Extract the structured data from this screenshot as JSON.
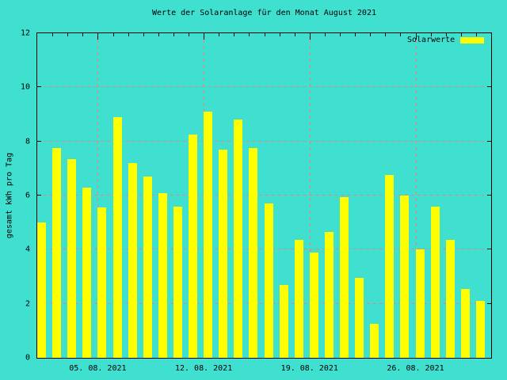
{
  "chart_data": {
    "type": "bar",
    "title": "Werte der Solaranlage für den Monat August 2021",
    "xlabel": "",
    "ylabel": "gesamt kWh pro Tag",
    "legend": {
      "label": "Solarwerte",
      "position": "top-right-inside"
    },
    "ylim": [
      0,
      12
    ],
    "yticks": [
      0,
      2,
      4,
      6,
      8,
      10,
      12
    ],
    "x_range_days": 31,
    "xticks": [
      {
        "day": 5,
        "label": "05. 08. 2021"
      },
      {
        "day": 12,
        "label": "12. 08. 2021"
      },
      {
        "day": 19,
        "label": "19. 08. 2021"
      },
      {
        "day": 26,
        "label": "26. 08. 2021"
      }
    ],
    "categories": [
      "1",
      "2",
      "3",
      "4",
      "5",
      "6",
      "7",
      "8",
      "9",
      "10",
      "11",
      "12",
      "13",
      "14",
      "15",
      "16",
      "17",
      "18",
      "19",
      "20",
      "21",
      "22",
      "23",
      "24",
      "25",
      "26",
      "27",
      "28",
      "29",
      "30"
    ],
    "values": [
      5.0,
      7.75,
      7.35,
      6.3,
      5.55,
      8.9,
      7.2,
      6.7,
      6.1,
      5.6,
      8.25,
      9.1,
      7.7,
      8.8,
      7.75,
      5.7,
      2.7,
      4.35,
      3.9,
      4.65,
      5.95,
      2.95,
      1.25,
      6.75,
      6.0,
      4.0,
      5.6,
      4.35,
      2.55,
      2.1
    ],
    "grid": true,
    "colors": {
      "background": "#40E0D0",
      "bar": "#FFFF00",
      "grid": "#F08080",
      "frame": "#000000"
    }
  }
}
